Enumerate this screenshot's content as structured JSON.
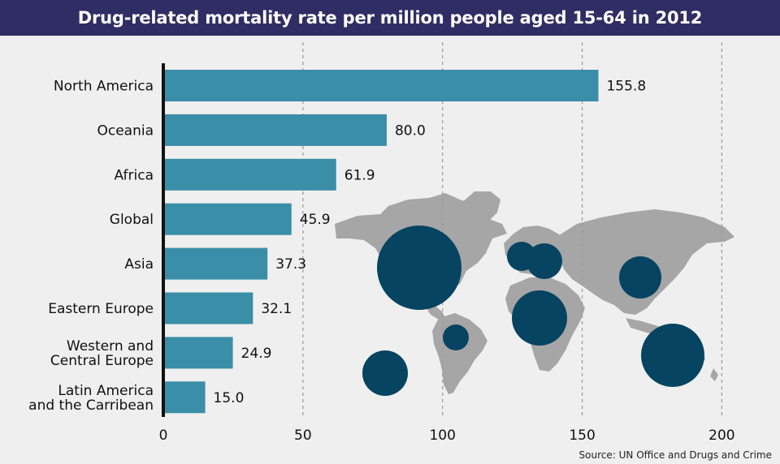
{
  "title": "Drug-related mortality rate per million people aged 15-64 in 2012",
  "source": "Source: UN Office and Drugs and Crime",
  "colors": {
    "bar": "#3a8ea8",
    "bubble": "#064461",
    "map": "#a6a6a6",
    "axis": "#111111",
    "grid": "#999999",
    "title_bg": "#2f2d63"
  },
  "chart_data": {
    "type": "bar",
    "orientation": "horizontal",
    "title": "Drug-related mortality rate per million people aged 15-64 in 2012",
    "categories": [
      "North America",
      "Oceania",
      "Africa",
      "Global",
      "Asia",
      "Eastern Europe",
      "Western and Central Europe",
      "Latin America and the Carribean"
    ],
    "category_lines": [
      [
        "North America"
      ],
      [
        "Oceania"
      ],
      [
        "Africa"
      ],
      [
        "Global"
      ],
      [
        "Asia"
      ],
      [
        "Eastern Europe"
      ],
      [
        "Western and",
        "Central Europe"
      ],
      [
        "Latin America",
        "and the Carribean"
      ]
    ],
    "values": [
      155.8,
      80.0,
      61.9,
      45.9,
      37.3,
      32.1,
      24.9,
      15.0
    ],
    "value_labels": [
      "155.8",
      "80.0",
      "61.9",
      "45.9",
      "37.3",
      "32.1",
      "24.9",
      "15.0"
    ],
    "xlim": [
      0,
      200
    ],
    "ticks": [
      0,
      50,
      100,
      150,
      200
    ],
    "grid": "vertical dashed",
    "background_illustration": "world map with proportional bubbles by region"
  }
}
